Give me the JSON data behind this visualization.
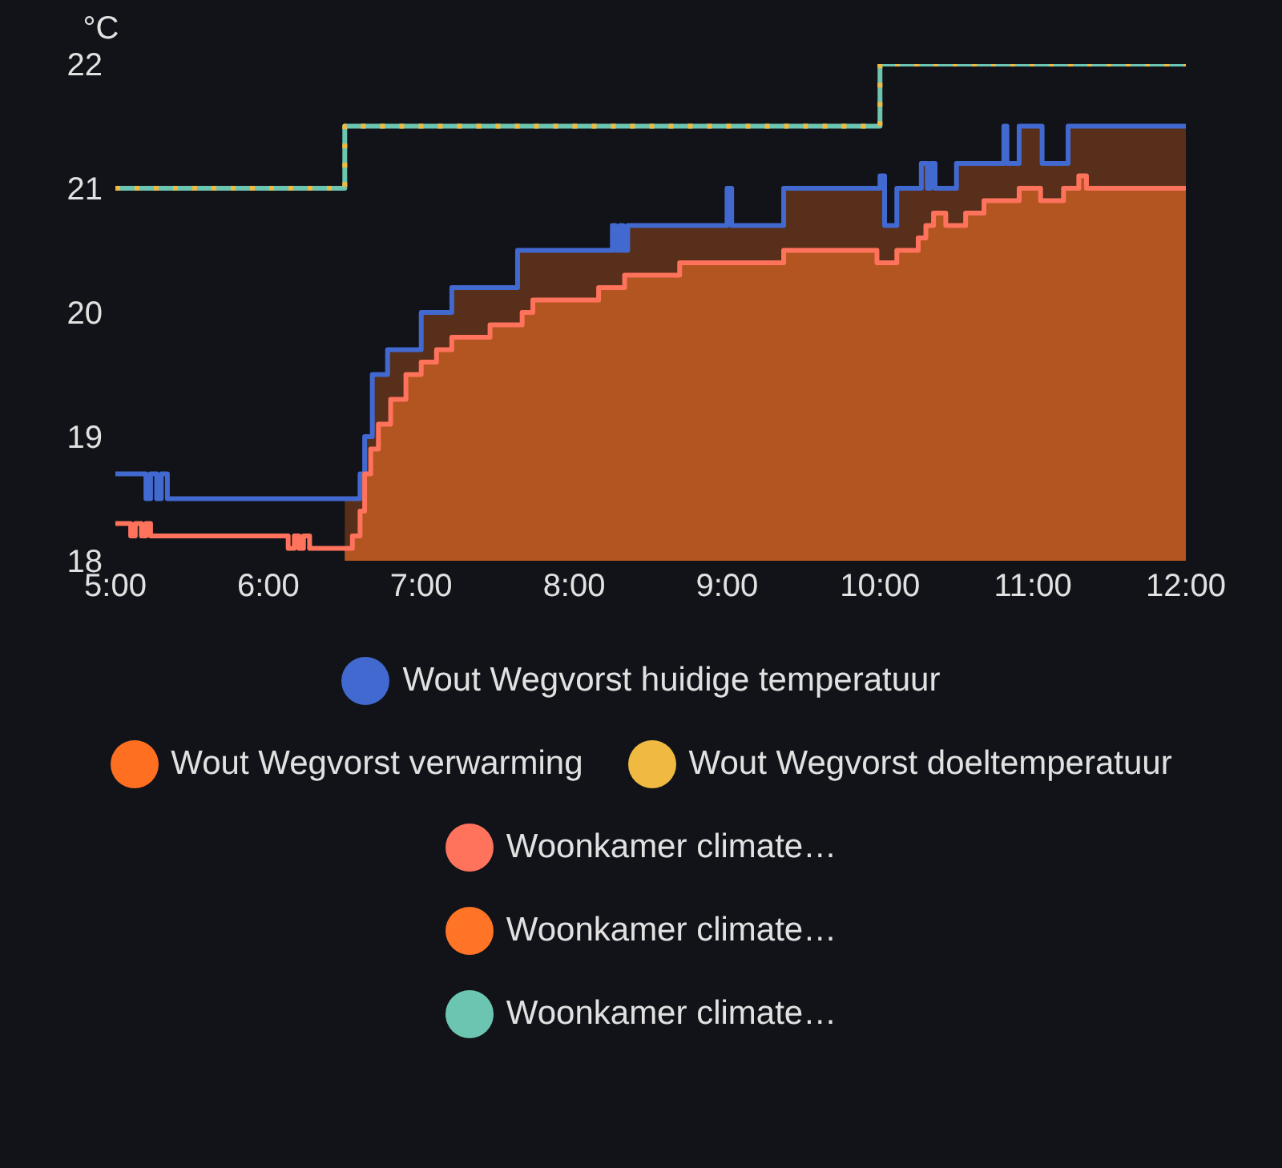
{
  "chart_data": {
    "type": "step",
    "ylabel": "°C",
    "xlim": [
      5,
      12
    ],
    "xticks": [
      {
        "value": 5,
        "label": "5:00"
      },
      {
        "value": 6,
        "label": "6:00"
      },
      {
        "value": 7,
        "label": "7:00"
      },
      {
        "value": 8,
        "label": "8:00"
      },
      {
        "value": 9,
        "label": "9:00"
      },
      {
        "value": 10,
        "label": "10:00"
      },
      {
        "value": 11,
        "label": "11:00"
      },
      {
        "value": 12,
        "label": "12:00"
      }
    ],
    "ylim": [
      18,
      22
    ],
    "yticks": [
      18,
      19,
      20,
      21,
      22
    ],
    "grid": false,
    "legend": "bottom",
    "marker": "none",
    "line_style": "solid",
    "series": [
      {
        "name": "Wout Wegvorst huidige temperatuur",
        "color": "#4269d0",
        "x": [
          5,
          5.2,
          5.23,
          5.27,
          5.3,
          5.34,
          6.6,
          6.63,
          6.68,
          6.78,
          7.0,
          7.2,
          7.63,
          8.25,
          8.27,
          8.3,
          8.32,
          8.35,
          9.0,
          9.03,
          9.37,
          10.0,
          10.03,
          10.11,
          10.27,
          10.31,
          10.33,
          10.36,
          10.5,
          10.81,
          10.83,
          10.91,
          11.06,
          11.23,
          12
        ],
        "values": [
          18.7,
          18.5,
          18.7,
          18.5,
          18.7,
          18.5,
          18.7,
          19.0,
          19.5,
          19.7,
          20.0,
          20.2,
          20.5,
          20.7,
          20.5,
          20.7,
          20.5,
          20.7,
          21.0,
          20.7,
          21.0,
          21.1,
          20.7,
          21.0,
          21.2,
          21.0,
          21.2,
          21.0,
          21.2,
          21.5,
          21.2,
          21.5,
          21.2,
          21.5,
          21.5
        ]
      },
      {
        "name": "Wout Wegvorst verwarming",
        "color": "#ff6f22",
        "type": "area",
        "x": [
          6.5,
          6.6,
          6.63,
          6.68,
          6.78,
          7.0,
          7.2,
          7.63,
          8.25,
          8.27,
          8.3,
          8.32,
          8.35,
          9.0,
          9.03,
          9.37,
          10.0,
          10.03,
          10.11,
          10.27,
          10.31,
          10.33,
          10.36,
          10.5,
          10.81,
          10.83,
          10.91,
          11.06,
          11.23,
          12
        ],
        "values": [
          18.5,
          18.7,
          19.0,
          19.5,
          19.7,
          20.0,
          20.2,
          20.5,
          20.7,
          20.5,
          20.7,
          20.5,
          20.7,
          21.0,
          20.7,
          21.0,
          21.1,
          20.7,
          21.0,
          21.2,
          21.0,
          21.2,
          21.0,
          21.2,
          21.5,
          21.2,
          21.5,
          21.2,
          21.5,
          21.5
        ]
      },
      {
        "name": "Wout Wegvorst doeltemperatuur",
        "color": "#f0b941",
        "line_style": "dotted",
        "x": [
          5,
          6.5,
          10.0,
          12
        ],
        "values": [
          21,
          21.5,
          22,
          22
        ]
      },
      {
        "name": "Woonkamer climate…",
        "color": "#ff725c",
        "x": [
          5,
          5.1,
          5.13,
          5.17,
          5.2,
          5.23,
          6.13,
          6.17,
          6.2,
          6.23,
          6.27,
          6.55,
          6.6,
          6.63,
          6.67,
          6.72,
          6.8,
          6.9,
          7.0,
          7.1,
          7.2,
          7.45,
          7.66,
          7.73,
          8.16,
          8.33,
          8.69,
          9.37,
          9.98,
          10.11,
          10.25,
          10.3,
          10.35,
          10.43,
          10.56,
          10.68,
          10.91,
          11.05,
          11.2,
          11.3,
          11.35,
          12
        ],
        "values": [
          18.3,
          18.2,
          18.3,
          18.2,
          18.3,
          18.2,
          18.1,
          18.2,
          18.1,
          18.2,
          18.1,
          18.2,
          18.4,
          18.7,
          18.9,
          19.1,
          19.3,
          19.5,
          19.6,
          19.7,
          19.8,
          19.9,
          20.0,
          20.1,
          20.2,
          20.3,
          20.4,
          20.5,
          20.4,
          20.5,
          20.6,
          20.7,
          20.8,
          20.7,
          20.8,
          20.9,
          21.0,
          20.9,
          21.0,
          21.1,
          21.0,
          21.0
        ]
      },
      {
        "name": "Woonkamer climate…",
        "color": "#ff7426",
        "type": "area",
        "x": [
          6.5,
          6.55,
          6.6,
          6.63,
          6.67,
          6.72,
          6.8,
          6.9,
          7.0,
          7.1,
          7.2,
          7.45,
          7.66,
          7.73,
          8.16,
          8.33,
          8.69,
          9.37,
          9.98,
          10.11,
          10.25,
          10.3,
          10.35,
          10.43,
          10.56,
          10.68,
          10.91,
          11.05,
          11.2,
          11.3,
          11.35,
          12
        ],
        "values": [
          18.1,
          18.2,
          18.4,
          18.7,
          18.9,
          19.1,
          19.3,
          19.5,
          19.6,
          19.7,
          19.8,
          19.9,
          20.0,
          20.1,
          20.2,
          20.3,
          20.4,
          20.5,
          20.4,
          20.5,
          20.6,
          20.7,
          20.8,
          20.7,
          20.8,
          20.9,
          21.0,
          20.9,
          21.0,
          21.1,
          21.0,
          21.0
        ]
      },
      {
        "name": "Woonkamer climate…",
        "color": "#6cc5b0",
        "x": [
          5,
          6.5,
          10.0,
          12
        ],
        "values": [
          21,
          21.5,
          22,
          22
        ]
      }
    ]
  }
}
